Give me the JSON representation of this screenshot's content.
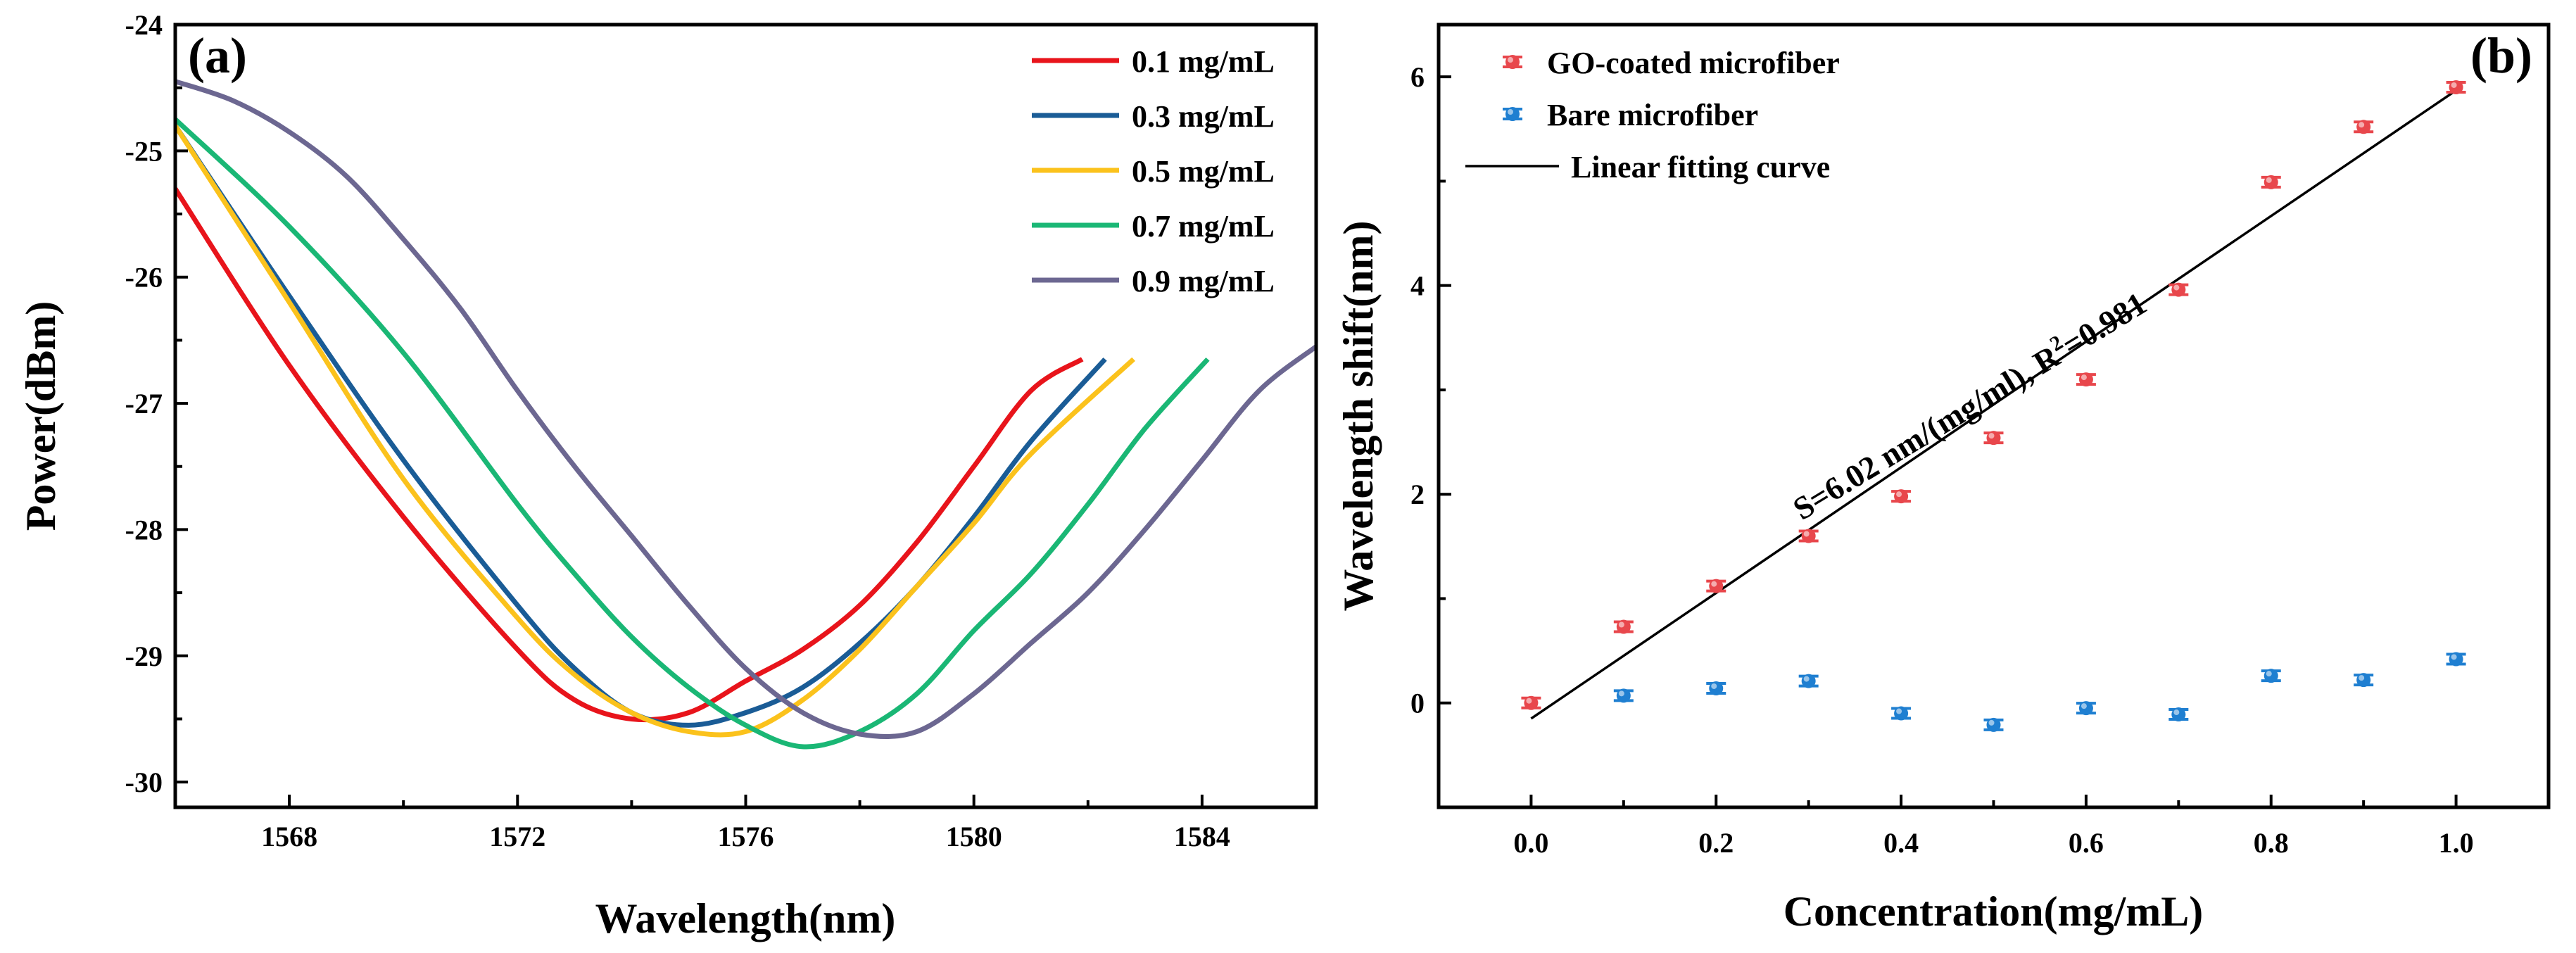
{
  "chart_data": [
    {
      "type": "line",
      "panel_label": "(a)",
      "xlabel": "Wavelength(nm)",
      "ylabel": "Power(dBm)",
      "xlim": [
        1566,
        1586
      ],
      "ylim": [
        -30.2,
        -24
      ],
      "x_ticks": [
        1568,
        1572,
        1576,
        1580,
        1584
      ],
      "y_ticks": [
        -30,
        -29,
        -28,
        -27,
        -26,
        -25,
        -24
      ],
      "legend_position": "top-right",
      "series": [
        {
          "name": "0.1 mg/mL",
          "color": "#e8141b",
          "points": [
            [
              1566,
              -25.3
            ],
            [
              1568,
              -26.7
            ],
            [
              1570,
              -27.9
            ],
            [
              1572,
              -28.95
            ],
            [
              1573,
              -29.35
            ],
            [
              1574,
              -29.5
            ],
            [
              1575,
              -29.45
            ],
            [
              1576,
              -29.2
            ],
            [
              1577,
              -28.95
            ],
            [
              1578,
              -28.6
            ],
            [
              1579,
              -28.1
            ],
            [
              1580,
              -27.5
            ],
            [
              1581,
              -26.9
            ],
            [
              1581.9,
              -26.65
            ]
          ]
        },
        {
          "name": "0.3 mg/mL",
          "color": "#1a5c96",
          "points": [
            [
              1566,
              -24.8
            ],
            [
              1568,
              -26.15
            ],
            [
              1570,
              -27.45
            ],
            [
              1572,
              -28.6
            ],
            [
              1573,
              -29.1
            ],
            [
              1574,
              -29.45
            ],
            [
              1575,
              -29.55
            ],
            [
              1576,
              -29.45
            ],
            [
              1577,
              -29.25
            ],
            [
              1578,
              -28.9
            ],
            [
              1579,
              -28.45
            ],
            [
              1580,
              -27.9
            ],
            [
              1581,
              -27.3
            ],
            [
              1582.3,
              -26.65
            ]
          ]
        },
        {
          "name": "0.5 mg/mL",
          "color": "#fbc21c",
          "points": [
            [
              1566,
              -24.8
            ],
            [
              1568,
              -26.2
            ],
            [
              1570,
              -27.6
            ],
            [
              1572,
              -28.7
            ],
            [
              1573,
              -29.15
            ],
            [
              1574,
              -29.45
            ],
            [
              1575,
              -29.6
            ],
            [
              1576,
              -29.6
            ],
            [
              1577,
              -29.35
            ],
            [
              1578,
              -28.95
            ],
            [
              1579,
              -28.45
            ],
            [
              1580,
              -27.95
            ],
            [
              1581,
              -27.4
            ],
            [
              1582.8,
              -26.65
            ]
          ]
        },
        {
          "name": "0.7 mg/mL",
          "color": "#1ab775",
          "points": [
            [
              1566,
              -24.75
            ],
            [
              1568,
              -25.6
            ],
            [
              1570,
              -26.6
            ],
            [
              1572,
              -27.8
            ],
            [
              1573,
              -28.35
            ],
            [
              1574,
              -28.85
            ],
            [
              1575,
              -29.25
            ],
            [
              1576,
              -29.55
            ],
            [
              1577,
              -29.72
            ],
            [
              1578,
              -29.6
            ],
            [
              1579,
              -29.3
            ],
            [
              1580,
              -28.8
            ],
            [
              1581,
              -28.35
            ],
            [
              1582,
              -27.8
            ],
            [
              1583,
              -27.2
            ],
            [
              1584.1,
              -26.65
            ]
          ]
        },
        {
          "name": "0.9 mg/mL",
          "color": "#6c6791",
          "points": [
            [
              1566,
              -24.45
            ],
            [
              1567,
              -24.6
            ],
            [
              1568,
              -24.85
            ],
            [
              1569,
              -25.2
            ],
            [
              1570,
              -25.7
            ],
            [
              1571,
              -26.25
            ],
            [
              1572,
              -26.9
            ],
            [
              1573,
              -27.5
            ],
            [
              1574,
              -28.05
            ],
            [
              1575,
              -28.6
            ],
            [
              1576,
              -29.1
            ],
            [
              1577,
              -29.45
            ],
            [
              1578,
              -29.62
            ],
            [
              1579,
              -29.6
            ],
            [
              1580,
              -29.3
            ],
            [
              1581,
              -28.9
            ],
            [
              1582,
              -28.5
            ],
            [
              1583,
              -28.0
            ],
            [
              1584,
              -27.45
            ],
            [
              1585,
              -26.9
            ],
            [
              1586,
              -26.55
            ]
          ]
        }
      ]
    },
    {
      "type": "scatter",
      "panel_label": "(b)",
      "xlabel": "Concentration(mg/mL)",
      "ylabel": "Wavelength shift(nm)",
      "xlim": [
        -0.1,
        1.1
      ],
      "ylim": [
        -1,
        6.5
      ],
      "x_ticks": [
        0.0,
        0.2,
        0.4,
        0.6,
        0.8,
        1.0
      ],
      "x_tick_labels": [
        "0.0",
        "0.2",
        "0.4",
        "0.6",
        "0.8",
        "1.0"
      ],
      "y_ticks": [
        0,
        2,
        4,
        6
      ],
      "legend_position": "top-left",
      "series": [
        {
          "name": "GO-coated microfiber",
          "color": "#e8474c",
          "x": [
            0,
            0.1,
            0.2,
            0.3,
            0.4,
            0.5,
            0.6,
            0.7,
            0.8,
            0.9,
            1.0
          ],
          "y": [
            0,
            0.73,
            1.12,
            1.6,
            1.98,
            2.54,
            3.1,
            3.96,
            4.99,
            5.52,
            5.9
          ]
        },
        {
          "name": "Bare microfiber",
          "color": "#1f7fd1",
          "x": [
            0.1,
            0.2,
            0.3,
            0.4,
            0.5,
            0.6,
            0.7,
            0.8,
            0.9,
            1.0
          ],
          "y": [
            0.07,
            0.14,
            0.21,
            -0.1,
            -0.21,
            -0.05,
            -0.11,
            0.26,
            0.22,
            0.42
          ]
        }
      ],
      "fit": {
        "name": "Linear fitting curve",
        "slope": 6.02,
        "intercept": -0.15,
        "x_range": [
          0,
          1.0
        ]
      },
      "annotation": {
        "prefix": "S=6.02 nm/(mg/ml), R",
        "superscript": "2",
        "suffix": "=0.981"
      }
    }
  ]
}
